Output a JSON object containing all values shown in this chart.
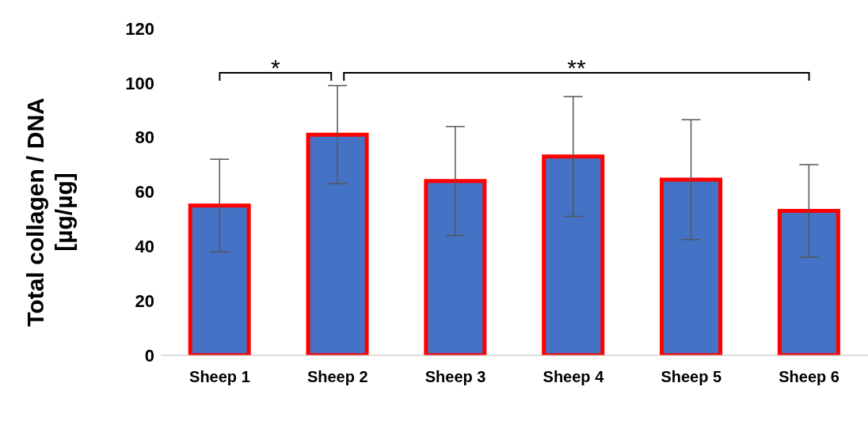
{
  "chart_data": {
    "type": "bar",
    "ylabel": "Total collagen / DNA [µg/µg]",
    "categories": [
      "Sheep 1",
      "Sheep 2",
      "Sheep 3",
      "Sheep 4",
      "Sheep 5",
      "Sheep 6"
    ],
    "values": [
      55,
      81,
      64,
      73,
      64.5,
      53
    ],
    "errors": [
      17,
      18,
      20,
      22,
      22,
      17
    ],
    "color": "#4472c4",
    "ylim": [
      0,
      120
    ],
    "yticks": [
      0,
      20,
      40,
      60,
      80,
      100,
      120
    ],
    "annotations": [
      "*",
      "**"
    ]
  }
}
